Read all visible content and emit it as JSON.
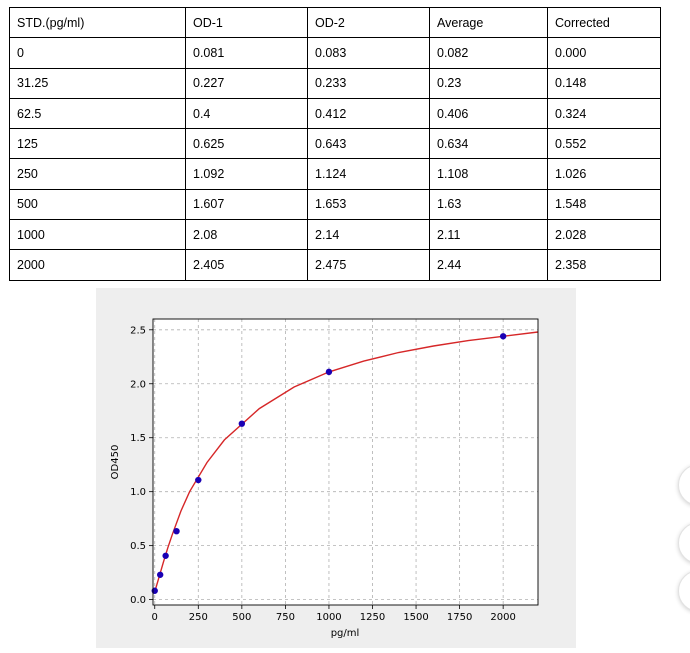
{
  "table": {
    "headers": [
      "STD.(pg/ml)",
      "OD-1",
      "OD-2",
      "Average",
      "Corrected"
    ],
    "rows": [
      [
        "0",
        "0.081",
        "0.083",
        "0.082",
        "0.000"
      ],
      [
        "31.25",
        "0.227",
        "0.233",
        "0.23",
        "0.148"
      ],
      [
        "62.5",
        "0.4",
        "0.412",
        "0.406",
        "0.324"
      ],
      [
        "125",
        "0.625",
        "0.643",
        "0.634",
        "0.552"
      ],
      [
        "250",
        "1.092",
        "1.124",
        "1.108",
        "1.026"
      ],
      [
        "500",
        "1.607",
        "1.653",
        "1.63",
        "1.548"
      ],
      [
        "1000",
        "2.08",
        "2.14",
        "2.11",
        "2.028"
      ],
      [
        "2000",
        "2.405",
        "2.475",
        "2.44",
        "2.358"
      ]
    ]
  },
  "chart_data": {
    "type": "scatter",
    "xlabel": "pg/ml",
    "ylabel": "OD450",
    "xlim": [
      -10,
      2200
    ],
    "ylim": [
      -0.05,
      2.6
    ],
    "xticks": [
      "0",
      "250",
      "500",
      "750",
      "1000",
      "1250",
      "1500",
      "1750",
      "2000"
    ],
    "yticks": [
      "0.0",
      "0.5",
      "1.0",
      "1.5",
      "2.0",
      "2.5"
    ],
    "grid": true,
    "points": {
      "x": [
        0,
        31.25,
        62.5,
        125,
        250,
        500,
        1000,
        2000
      ],
      "y": [
        0.082,
        0.23,
        0.406,
        0.634,
        1.108,
        1.63,
        2.11,
        2.44
      ]
    },
    "point_color": "#1a00b4",
    "curve_color": "#d62728",
    "fit_curve": {
      "x": [
        0,
        25,
        50,
        75,
        100,
        150,
        200,
        300,
        400,
        600,
        800,
        1000,
        1200,
        1400,
        1600,
        1800,
        2000,
        2200
      ],
      "y": [
        0.07,
        0.21,
        0.35,
        0.48,
        0.6,
        0.82,
        1.0,
        1.27,
        1.48,
        1.77,
        1.97,
        2.11,
        2.21,
        2.29,
        2.35,
        2.4,
        2.44,
        2.48
      ]
    }
  }
}
